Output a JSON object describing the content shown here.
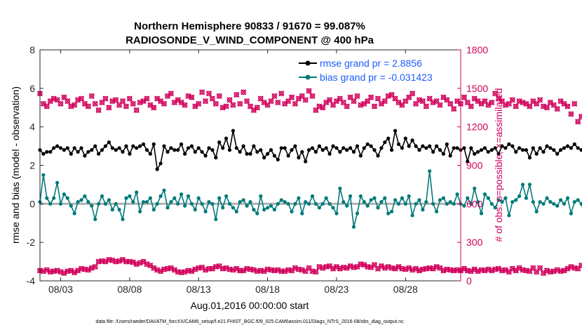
{
  "chart_data": {
    "type": "line",
    "title": "Northern Hemisphere 90833 / 91670 = 99.087%",
    "subtitle": "RADIOSONDE_V_WIND_COMPONENT @ 400 hPa",
    "xlabel": "Aug.01,2016 00:00:00 start",
    "ylabel": "rmse and bias (model - observation)",
    "ylabel_right": "# of obs: o=possible; ×=assimilated",
    "x_ticks": [
      "08/03",
      "08/08",
      "08/13",
      "08/18",
      "08/23",
      "08/28"
    ],
    "x_tick_days": [
      3,
      8,
      13,
      18,
      23,
      28
    ],
    "xlim": [
      1.5,
      32.0
    ],
    "ylim": [
      -4,
      8
    ],
    "y_ticks": [
      "-4",
      "-2",
      "0",
      "2",
      "4",
      "6",
      "8"
    ],
    "y_tick_values": [
      -4,
      -2,
      0,
      2,
      4,
      6,
      8
    ],
    "ylim_right": [
      0,
      1800
    ],
    "y_ticks_right": [
      "0",
      "300",
      "600",
      "900",
      "1200",
      "1500",
      "1800"
    ],
    "y_tick_values_right": [
      0,
      300,
      600,
      900,
      1200,
      1500,
      1800
    ],
    "x_start_day": 1.5,
    "x_step_days": 0.25,
    "series": [
      {
        "name": "rmse grand pr = 2.8856",
        "color": "#000000",
        "axis": "left",
        "values": [
          2.8,
          2.6,
          2.7,
          2.7,
          2.9,
          3.0,
          2.9,
          2.8,
          2.9,
          2.6,
          2.9,
          2.7,
          2.9,
          2.5,
          2.7,
          2.8,
          3.0,
          2.6,
          2.8,
          3.0,
          3.2,
          2.9,
          2.8,
          2.9,
          2.7,
          3.0,
          2.6,
          3.0,
          2.9,
          3.0,
          3.1,
          2.8,
          2.6,
          3.1,
          1.8,
          2.1,
          3.0,
          2.7,
          2.9,
          2.8,
          2.8,
          3.1,
          2.6,
          2.9,
          3.0,
          2.7,
          2.9,
          2.7,
          2.5,
          2.9,
          2.8,
          2.4,
          3.2,
          2.9,
          3.4,
          2.8,
          3.8,
          2.9,
          2.7,
          3.0,
          2.6,
          2.6,
          3.0,
          2.7,
          2.8,
          2.4,
          2.6,
          2.8,
          2.5,
          2.3,
          2.9,
          2.9,
          2.5,
          2.8,
          3.0,
          2.4,
          2.7,
          2.2,
          2.8,
          2.9,
          2.7,
          3.0,
          2.8,
          2.9,
          2.6,
          3.0,
          2.9,
          2.7,
          2.9,
          2.8,
          2.9,
          2.7,
          3.0,
          2.5,
          2.9,
          3.1,
          3.0,
          2.8,
          2.5,
          2.9,
          3.2,
          3.4,
          2.8,
          3.8,
          3.1,
          2.9,
          3.4,
          3.0,
          3.3,
          3.0,
          2.8,
          3.0,
          2.9,
          3.0,
          2.7,
          3.0,
          2.8,
          2.6,
          3.1,
          2.5,
          2.9,
          2.9,
          2.8,
          2.9,
          2.2,
          2.9,
          2.6,
          2.7,
          2.8,
          2.9,
          2.7,
          2.8,
          2.9,
          2.6,
          3.0,
          2.9,
          3.1,
          3.0,
          2.7,
          2.9,
          2.8,
          2.8,
          2.4,
          2.9,
          2.6,
          2.9,
          2.7,
          3.0,
          2.9,
          2.8,
          2.6,
          2.8,
          2.9,
          3.0,
          2.9,
          3.1,
          2.9,
          2.8,
          3.0,
          2.4,
          2.8,
          2.0,
          2.2,
          2.8,
          3.1,
          2.9,
          3.3,
          2.9,
          2.4
        ]
      },
      {
        "name": "bias grand pr = -0.031423",
        "color": "#007a7a",
        "axis": "left",
        "values": [
          0.1,
          1.5,
          0.3,
          0.0,
          0.3,
          1.1,
          0.0,
          0.5,
          0.3,
          -0.1,
          -0.5,
          0.1,
          0.2,
          0.4,
          0.1,
          -0.1,
          -0.8,
          0.0,
          0.4,
          0.0,
          0.2,
          -0.3,
          0.0,
          -0.3,
          -0.8,
          0.3,
          0.4,
          0.1,
          0.6,
          -0.4,
          0.1,
          0.1,
          0.3,
          -0.3,
          0.0,
          0.4,
          0.7,
          -0.2,
          0.1,
          0.3,
          0.0,
          0.5,
          -0.1,
          0.4,
          0.0,
          -0.3,
          0.3,
          0.0,
          -0.4,
          0.1,
          0.0,
          -0.8,
          0.3,
          -0.2,
          0.4,
          0.0,
          -0.2,
          -0.4,
          0.1,
          0.2,
          -0.1,
          0.1,
          -0.3,
          -0.5,
          0.4,
          -0.3,
          -0.2,
          -0.1,
          -0.3,
          0.0,
          0.2,
          0.1,
          0.0,
          -0.4,
          0.0,
          0.3,
          -0.5,
          0.1,
          0.0,
          0.4,
          0.0,
          -0.2,
          0.0,
          0.3,
          0.0,
          -0.2,
          -0.5,
          0.8,
          0.1,
          -0.1,
          0.4,
          -1.2,
          -0.5,
          0.4,
          0.1,
          -0.1,
          0.2,
          0.3,
          -0.2,
          0.1,
          0.3,
          -0.5,
          -0.4,
          0.2,
          0.0,
          0.3,
          0.0,
          0.4,
          -0.6,
          0.0,
          0.2,
          -0.3,
          0.1,
          1.7,
          0.0,
          -0.4,
          0.2,
          0.3,
          0.0,
          0.1,
          0.0,
          0.5,
          0.0,
          -0.1,
          0.3,
          0.0,
          0.8,
          0.1,
          -0.5,
          0.5,
          0.3,
          0.0,
          -0.2,
          0.2,
          0.1,
          0.3,
          -0.6,
          0.1,
          0.2,
          0.4,
          1.0,
          0.3,
          1.0,
          0.1,
          -0.4,
          0.1,
          0.0,
          0.3,
          0.1,
          0.0,
          -0.1,
          0.2,
          0.0,
          0.3,
          -0.5,
          0.1,
          0.2,
          0.0,
          -0.6,
          0.1,
          0.2,
          -0.3,
          0.7,
          0.5,
          0.2,
          0.3,
          0.1,
          0.2,
          0.5,
          0.3,
          0.7,
          0.1,
          0.4
        ]
      },
      {
        "name": "obs possible/assimilated (upper)",
        "color": "#d1005b",
        "axis": "right",
        "values": [
          1460,
          1380,
          1360,
          1400,
          1420,
          1410,
          1380,
          1430,
          1400,
          1360,
          1370,
          1410,
          1420,
          1380,
          1360,
          1440,
          1380,
          1330,
          1390,
          1420,
          1350,
          1400,
          1410,
          1370,
          1400,
          1360,
          1420,
          1380,
          1330,
          1390,
          1400,
          1420,
          1370,
          1350,
          1420,
          1400,
          1380,
          1440,
          1460,
          1390,
          1410,
          1390,
          1370,
          1440,
          1430,
          1360,
          1380,
          1470,
          1400,
          1460,
          1420,
          1380,
          1440,
          1350,
          1360,
          1410,
          1370,
          1450,
          1380,
          1470,
          1400,
          1360,
          1330,
          1350,
          1420,
          1390,
          1370,
          1400,
          1440,
          1390,
          1460,
          1380,
          1400,
          1430,
          1380,
          1420,
          1440,
          1410,
          1480,
          1440,
          1330,
          1360,
          1350,
          1390,
          1410,
          1370,
          1400,
          1420,
          1390,
          1360,
          1430,
          1400,
          1440,
          1370,
          1380,
          1400,
          1430,
          1360,
          1420,
          1380,
          1400,
          1440,
          1450,
          1420,
          1390,
          1370,
          1400,
          1430,
          1460,
          1380,
          1410,
          1400,
          1360,
          1420,
          1390,
          1400,
          1370,
          1430,
          1410,
          1380,
          1340,
          1400,
          1380,
          1430,
          1390,
          1360,
          1420,
          1400,
          1380,
          1400,
          1370,
          1390,
          1460,
          1420,
          1400,
          1370,
          1380,
          1410,
          1360,
          1400,
          1390,
          1380,
          1360,
          1400,
          1380,
          1410,
          1360,
          1350,
          1390,
          1370,
          1340,
          1400,
          1380,
          1360,
          1300,
          1380,
          1240,
          1280,
          1370,
          1470,
          1410,
          1400,
          1370,
          1360,
          1400,
          1360,
          1390,
          1350,
          1380,
          1350,
          1330
        ]
      },
      {
        "name": "obs possible/assimilated (lower)",
        "color": "#d1005b",
        "axis": "right",
        "values": [
          80,
          75,
          85,
          70,
          75,
          80,
          70,
          60,
          75,
          80,
          65,
          80,
          95,
          90,
          85,
          100,
          110,
          150,
          155,
          150,
          165,
          160,
          150,
          155,
          165,
          150,
          150,
          145,
          130,
          140,
          150,
          130,
          120,
          100,
          85,
          75,
          90,
          95,
          100,
          85,
          70,
          65,
          70,
          80,
          75,
          90,
          100,
          105,
          85,
          95,
          95,
          110,
          115,
          95,
          100,
          90,
          85,
          95,
          80,
          80,
          95,
          90,
          85,
          75,
          80,
          75,
          90,
          85,
          80,
          85,
          75,
          75,
          85,
          80,
          100,
          90,
          85,
          75,
          100,
          75,
          70,
          110,
          100,
          110,
          115,
          95,
          110,
          95,
          105,
          100,
          115,
          105,
          110,
          130,
          125,
          110,
          105,
          125,
          95,
          115,
          100,
          110,
          100,
          95,
          110,
          95,
          90,
          100,
          85,
          95,
          80,
          90,
          95,
          100,
          95,
          110,
          100,
          80,
          90,
          85,
          80,
          85,
          80,
          95,
          80,
          75,
          90,
          75,
          85,
          80,
          90,
          80,
          90,
          95,
          80,
          85,
          70,
          95,
          80,
          100,
          85,
          80,
          75,
          100,
          70,
          100,
          60,
          80,
          70,
          75,
          85,
          75,
          80,
          95,
          110,
          100,
          95,
          120,
          110,
          130,
          100,
          90,
          145,
          160,
          150,
          150,
          140,
          130,
          145,
          140,
          135,
          130,
          150,
          130,
          125,
          0
        ]
      }
    ]
  },
  "footer": "data file: /Users/raeder/DAI/ATM_forcXX/CAM6_setup/f.e21.FHIST_BGC.f09_025.CAM6assim.011/Diags_NTrS_2016-08/obs_diag_output.nc"
}
